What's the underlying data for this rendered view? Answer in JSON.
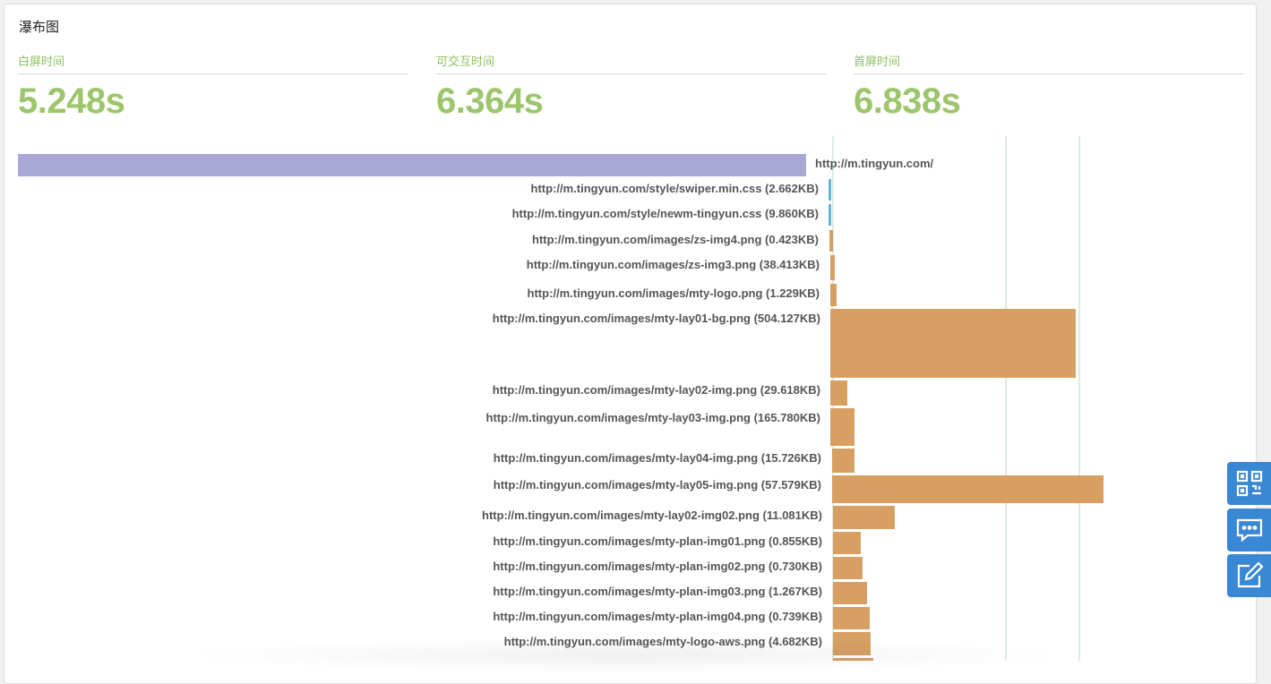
{
  "panel": {
    "title": "瀑布图"
  },
  "metrics": [
    {
      "label": "白屏时间",
      "value": "5.248s"
    },
    {
      "label": "可交互时间",
      "value": "6.364s"
    },
    {
      "label": "首屏时间",
      "value": "6.838s"
    }
  ],
  "colors": {
    "document_bar": "#a9a7d6",
    "css_bar": "#6bb0d8",
    "image_bar": "#d79f62",
    "marker_line": "#cfe6d6",
    "metric_text": "#9cc56c",
    "side_buttons": "#3a87d4"
  },
  "resources": [
    {
      "label": "http://m.tingyun.com/",
      "type": "document"
    },
    {
      "label": "http://m.tingyun.com/style/swiper.min.css (2.662KB)",
      "type": "css"
    },
    {
      "label": "http://m.tingyun.com/style/newm-tingyun.css (9.860KB)",
      "type": "css"
    },
    {
      "label": "http://m.tingyun.com/images/zs-img4.png (0.423KB)",
      "type": "image"
    },
    {
      "label": "http://m.tingyun.com/images/zs-img3.png (38.413KB)",
      "type": "image"
    },
    {
      "label": "http://m.tingyun.com/images/mty-logo.png (1.229KB)",
      "type": "image"
    },
    {
      "label": "http://m.tingyun.com/images/mty-lay01-bg.png (504.127KB)",
      "type": "image"
    },
    {
      "label": "http://m.tingyun.com/images/mty-lay02-img.png (29.618KB)",
      "type": "image"
    },
    {
      "label": "http://m.tingyun.com/images/mty-lay03-img.png (165.780KB)",
      "type": "image"
    },
    {
      "label": "http://m.tingyun.com/images/mty-lay04-img.png (15.726KB)",
      "type": "image"
    },
    {
      "label": "http://m.tingyun.com/images/mty-lay05-img.png (57.579KB)",
      "type": "image"
    },
    {
      "label": "http://m.tingyun.com/images/mty-lay02-img02.png (11.081KB)",
      "type": "image"
    },
    {
      "label": "http://m.tingyun.com/images/mty-plan-img01.png (0.855KB)",
      "type": "image"
    },
    {
      "label": "http://m.tingyun.com/images/mty-plan-img02.png (0.730KB)",
      "type": "image"
    },
    {
      "label": "http://m.tingyun.com/images/mty-plan-img03.png (1.267KB)",
      "type": "image"
    },
    {
      "label": "http://m.tingyun.com/images/mty-plan-img04.png (0.739KB)",
      "type": "image"
    },
    {
      "label": "http://m.tingyun.com/images/mty-logo-aws.png (4.682KB)",
      "type": "image"
    },
    {
      "label": "",
      "type": "image"
    }
  ],
  "side_buttons": [
    {
      "icon": "qr-code-icon"
    },
    {
      "icon": "chat-bubble-icon"
    },
    {
      "icon": "edit-icon"
    }
  ]
}
